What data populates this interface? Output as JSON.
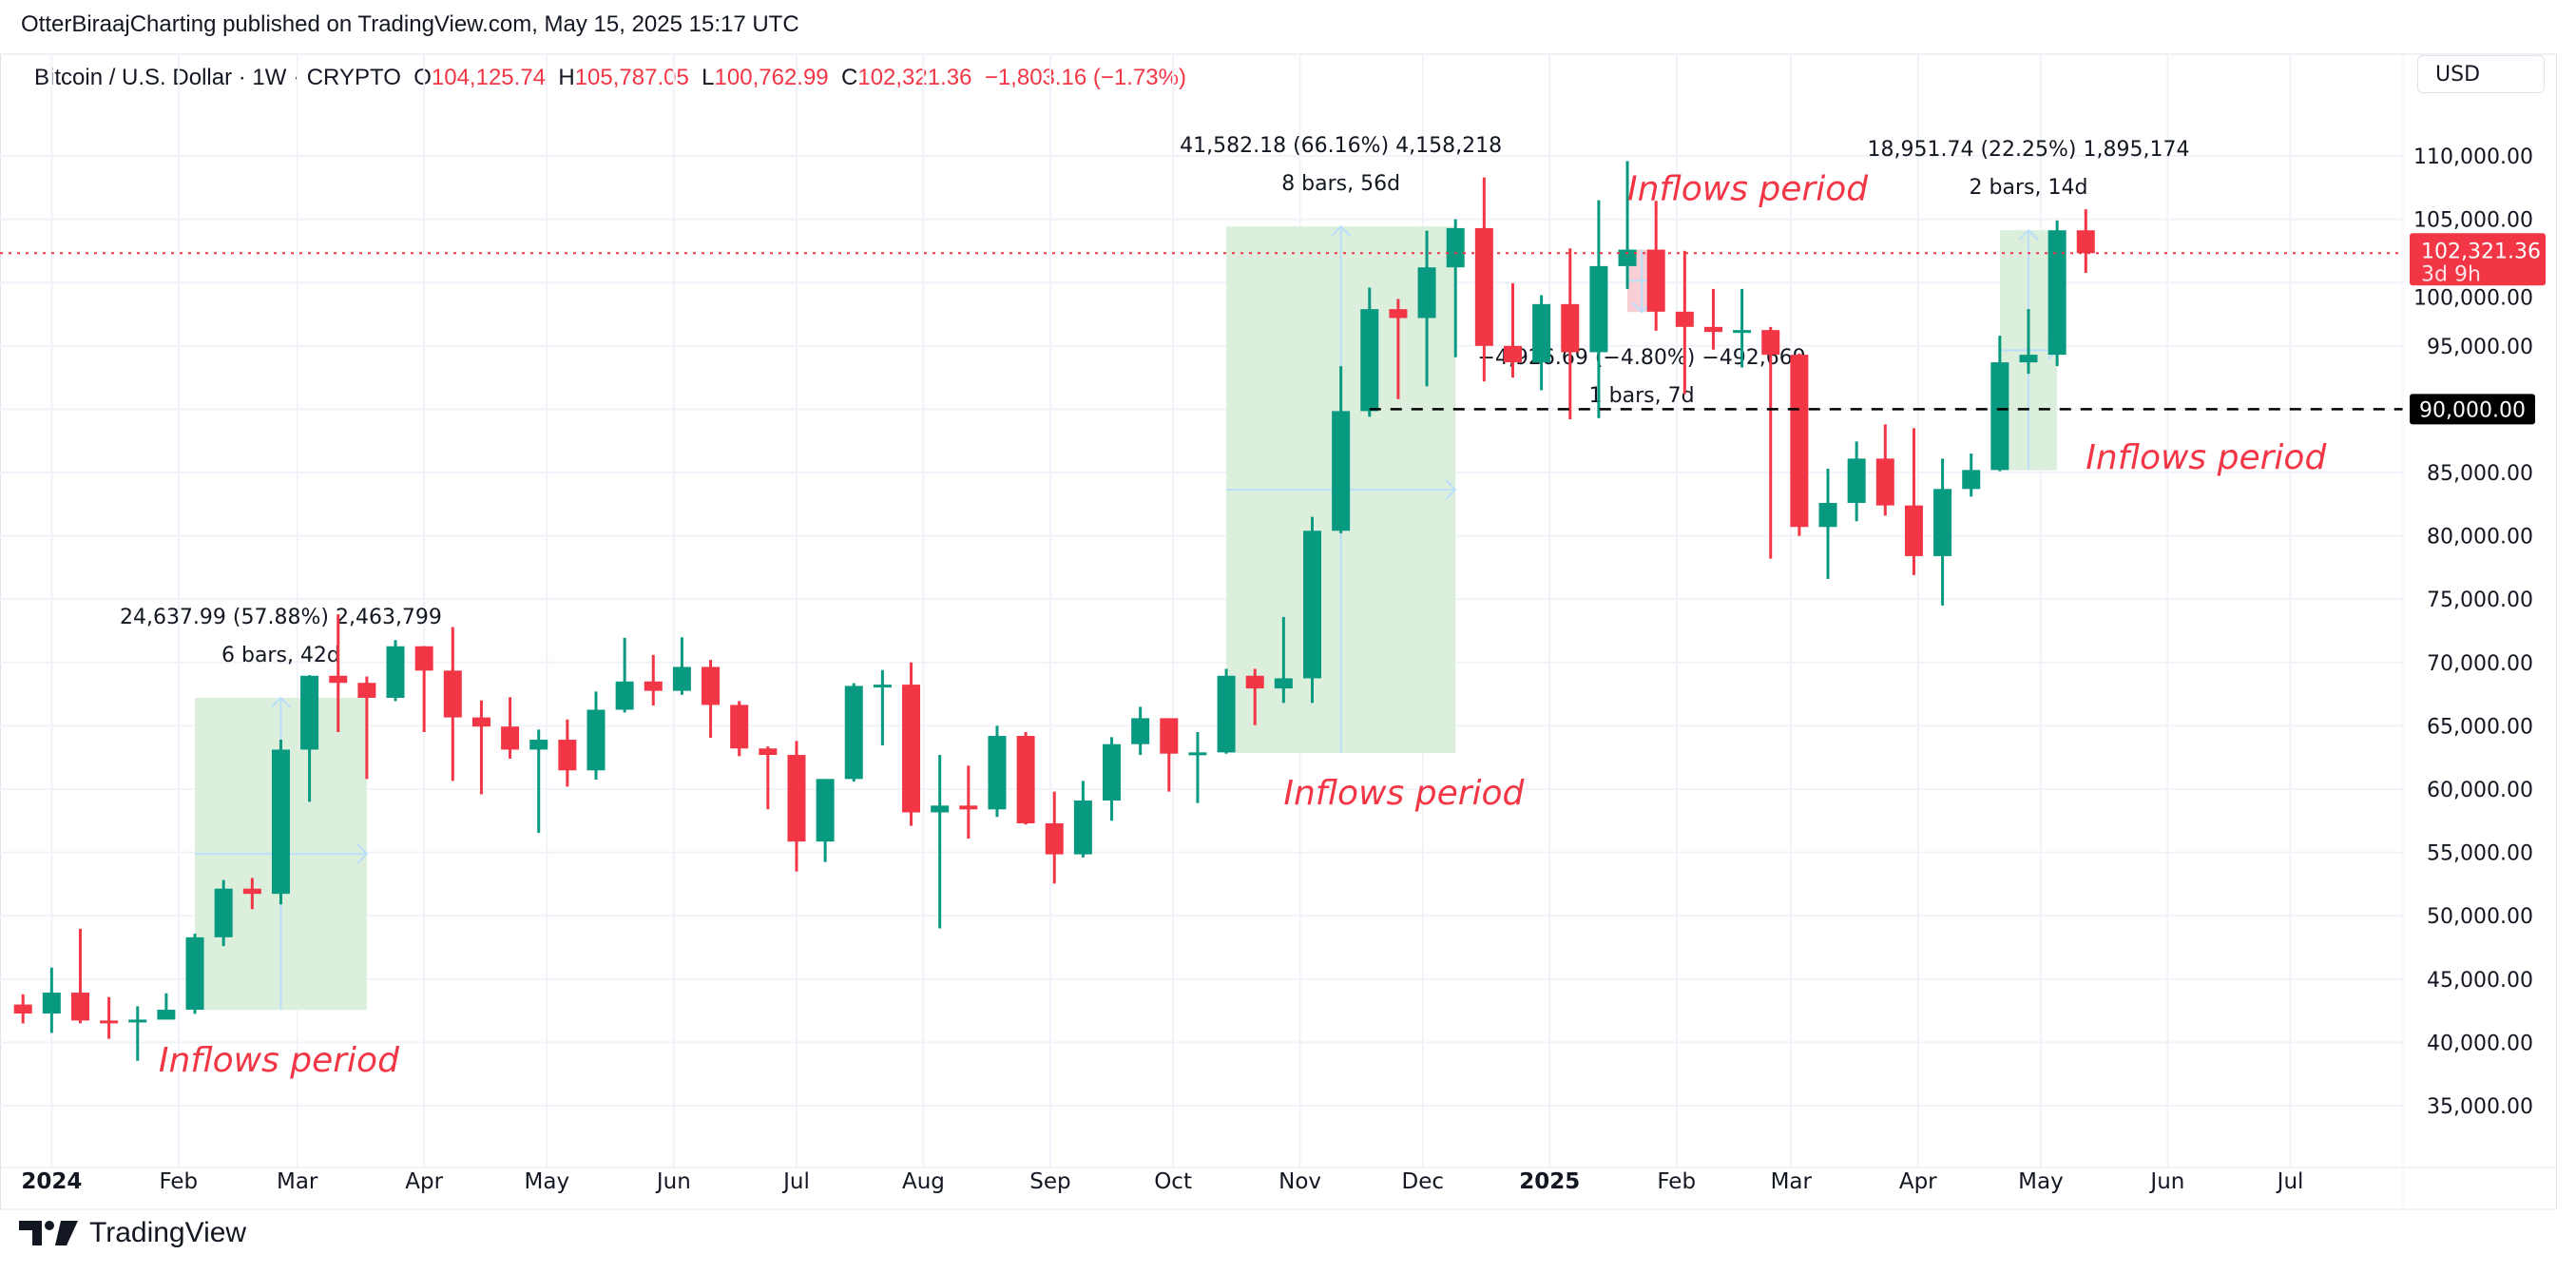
{
  "header": {
    "published": "OtterBiraajCharting published on TradingView.com, May 15, 2025 15:17 UTC"
  },
  "legend": {
    "symbol": "Bitcoin / U.S. Dollar · 1W · CRYPTO",
    "o_label": "O",
    "o": "104,125.74",
    "h_label": "H",
    "h": "105,787.05",
    "l_label": "L",
    "l": "100,762.99",
    "c_label": "C",
    "c": "102,321.36",
    "change": "−1,803.16 (−1.73%)"
  },
  "currency_button": "USD",
  "footer": {
    "brand": "TradingView",
    "logo_icon": "tradingview-logo-icon"
  },
  "colors": {
    "up": "#089981",
    "down": "#f23645",
    "range_fill": "#dcefdc",
    "neg_range_fill": "#f8c9cf",
    "arrow": "#bbdefb",
    "grid": "#f0f3fa",
    "annotation_text": "#f23645"
  },
  "chart_data": {
    "type": "candlestick",
    "interval": "1W",
    "ylim": [
      31000,
      114000
    ],
    "grid": true,
    "y_ticks": [
      "110,000.00",
      "105,000.00",
      "100,000.00",
      "95,000.00",
      "90,000.00",
      "85,000.00",
      "80,000.00",
      "75,000.00",
      "70,000.00",
      "65,000.00",
      "60,000.00",
      "55,000.00",
      "50,000.00",
      "45,000.00",
      "40,000.00",
      "35,000.00"
    ],
    "x_ticks": [
      {
        "label": "2024",
        "date": "2024-01-01",
        "bold": true
      },
      {
        "label": "Feb",
        "date": "2024-02-01"
      },
      {
        "label": "Mar",
        "date": "2024-03-01"
      },
      {
        "label": "Apr",
        "date": "2024-04-01"
      },
      {
        "label": "May",
        "date": "2024-05-01"
      },
      {
        "label": "Jun",
        "date": "2024-06-01"
      },
      {
        "label": "Jul",
        "date": "2024-07-01"
      },
      {
        "label": "Aug",
        "date": "2024-08-01"
      },
      {
        "label": "Sep",
        "date": "2024-09-01"
      },
      {
        "label": "Oct",
        "date": "2024-10-01"
      },
      {
        "label": "Nov",
        "date": "2024-11-01"
      },
      {
        "label": "Dec",
        "date": "2024-12-01"
      },
      {
        "label": "2025",
        "date": "2025-01-01",
        "bold": true
      },
      {
        "label": "Feb",
        "date": "2025-02-01"
      },
      {
        "label": "Mar",
        "date": "2025-03-01"
      },
      {
        "label": "Apr",
        "date": "2025-04-01"
      },
      {
        "label": "May",
        "date": "2025-05-01"
      },
      {
        "label": "Jun",
        "date": "2025-06-01"
      },
      {
        "label": "Jul",
        "date": "2025-07-01"
      }
    ],
    "columns": [
      "date",
      "open",
      "high",
      "low",
      "close"
    ],
    "candles": [
      [
        "2023-12-25",
        42990,
        43800,
        41500,
        42280
      ],
      [
        "2024-01-01",
        42280,
        45900,
        40750,
        43930
      ],
      [
        "2024-01-08",
        43930,
        48970,
        41500,
        41730
      ],
      [
        "2024-01-15",
        41730,
        43580,
        40280,
        41580
      ],
      [
        "2024-01-22",
        41580,
        42850,
        38550,
        41800
      ],
      [
        "2024-01-29",
        41800,
        43880,
        41850,
        42580
      ],
      [
        "2024-02-05",
        42580,
        48590,
        42250,
        48300
      ],
      [
        "2024-02-12",
        48300,
        52820,
        47600,
        52140
      ],
      [
        "2024-02-19",
        52140,
        52980,
        50520,
        51730
      ],
      [
        "2024-02-26",
        51730,
        63900,
        50900,
        63120
      ],
      [
        "2024-03-04",
        63120,
        69000,
        59000,
        68950
      ],
      [
        "2024-03-11",
        68950,
        73800,
        64500,
        68390
      ],
      [
        "2024-03-18",
        68390,
        68900,
        60800,
        67210
      ],
      [
        "2024-03-25",
        67210,
        71770,
        66950,
        71280
      ],
      [
        "2024-04-01",
        71280,
        71300,
        64500,
        69360
      ],
      [
        "2024-04-08",
        69360,
        72800,
        60650,
        65660
      ],
      [
        "2024-04-15",
        65660,
        67000,
        59600,
        64940
      ],
      [
        "2024-04-22",
        64940,
        67250,
        62400,
        63120
      ],
      [
        "2024-04-29",
        63120,
        64700,
        56550,
        63900
      ],
      [
        "2024-05-06",
        63900,
        65500,
        60200,
        61480
      ],
      [
        "2024-05-13",
        61480,
        67700,
        60750,
        66270
      ],
      [
        "2024-05-20",
        66270,
        71950,
        66050,
        68500
      ],
      [
        "2024-05-27",
        68500,
        70600,
        66600,
        67760
      ],
      [
        "2024-06-03",
        67760,
        71990,
        67450,
        69650
      ],
      [
        "2024-06-10",
        69650,
        70200,
        64050,
        66650
      ],
      [
        "2024-06-17",
        66650,
        66950,
        62600,
        63210
      ],
      [
        "2024-06-24",
        63210,
        63370,
        58400,
        62700
      ],
      [
        "2024-07-01",
        62700,
        63800,
        53500,
        55860
      ],
      [
        "2024-07-08",
        55860,
        60800,
        54250,
        60800
      ],
      [
        "2024-07-15",
        60800,
        68360,
        60600,
        68150
      ],
      [
        "2024-07-22",
        68150,
        69400,
        63450,
        68250
      ],
      [
        "2024-07-29",
        68250,
        70000,
        57100,
        58160
      ],
      [
        "2024-08-05",
        58160,
        62700,
        49000,
        58700
      ],
      [
        "2024-08-12",
        58700,
        61850,
        56100,
        58400
      ],
      [
        "2024-08-19",
        58400,
        65000,
        57800,
        64200
      ],
      [
        "2024-08-26",
        64200,
        64500,
        57200,
        57300
      ],
      [
        "2024-09-02",
        57300,
        59800,
        52550,
        54850
      ],
      [
        "2024-09-09",
        54850,
        60650,
        54600,
        59100
      ],
      [
        "2024-09-16",
        59100,
        64100,
        57500,
        63550
      ],
      [
        "2024-09-23",
        63550,
        66500,
        62700,
        65600
      ],
      [
        "2024-09-30",
        65600,
        65600,
        59800,
        62800
      ],
      [
        "2024-10-07",
        62800,
        64500,
        58900,
        62900
      ],
      [
        "2024-10-14",
        62900,
        69500,
        62800,
        68950
      ],
      [
        "2024-10-21",
        68950,
        69500,
        65050,
        67950
      ],
      [
        "2024-10-28",
        67950,
        73600,
        66800,
        68750
      ],
      [
        "2024-11-04",
        68750,
        81500,
        66800,
        80400
      ],
      [
        "2024-11-11",
        80400,
        93400,
        80200,
        89850
      ],
      [
        "2024-11-18",
        89850,
        99600,
        89400,
        97900
      ],
      [
        "2024-11-25",
        97900,
        98700,
        90800,
        97200
      ],
      [
        "2024-12-02",
        97200,
        104100,
        91800,
        101200
      ],
      [
        "2024-12-09",
        101200,
        105000,
        94100,
        104300
      ],
      [
        "2024-12-16",
        104300,
        108300,
        92200,
        95000
      ],
      [
        "2024-12-23",
        95000,
        99950,
        92500,
        93700
      ],
      [
        "2024-12-30",
        93700,
        99000,
        91500,
        98300
      ],
      [
        "2025-01-06",
        98300,
        102700,
        89200,
        94500
      ],
      [
        "2025-01-13",
        94500,
        106500,
        89300,
        101300
      ],
      [
        "2025-01-20",
        101300,
        109600,
        99500,
        102600
      ],
      [
        "2025-01-27",
        102600,
        106450,
        96200,
        97700
      ],
      [
        "2025-02-03",
        97700,
        102500,
        91200,
        96500
      ],
      [
        "2025-02-10",
        96500,
        99500,
        94700,
        96100
      ],
      [
        "2025-02-17",
        96100,
        99500,
        93300,
        96250
      ],
      [
        "2025-02-24",
        96250,
        96500,
        78200,
        94300
      ],
      [
        "2025-03-03",
        94300,
        94400,
        80000,
        80700
      ],
      [
        "2025-03-10",
        80700,
        85300,
        76600,
        82600
      ],
      [
        "2025-03-17",
        82600,
        87450,
        81150,
        86100
      ],
      [
        "2025-03-24",
        86100,
        88800,
        81600,
        82400
      ],
      [
        "2025-03-31",
        82400,
        88500,
        76900,
        78400
      ],
      [
        "2025-04-07",
        78400,
        86100,
        74500,
        83700
      ],
      [
        "2025-04-14",
        83700,
        86500,
        83100,
        85200
      ],
      [
        "2025-04-21",
        85200,
        95800,
        85100,
        93700
      ],
      [
        "2025-04-28",
        93700,
        97900,
        92800,
        94300
      ],
      [
        "2025-05-05",
        94300,
        104900,
        93400,
        104125.74
      ],
      [
        "2025-05-12",
        104125.74,
        105787.05,
        100762.99,
        102321.36
      ]
    ],
    "date_price_ranges": [
      {
        "from": "2024-02-05",
        "to": "2024-03-18",
        "p1": 42568.18,
        "p2": 67206.17,
        "line1": "24,637.99 (57.88%) 2,463,799",
        "line2": "6 bars, 42d"
      },
      {
        "from": "2024-10-14",
        "to": "2024-12-09",
        "p1": 62850,
        "p2": 104432.18,
        "line1": "41,582.18 (66.16%) 4,158,218",
        "line2": "8 bars, 56d"
      },
      {
        "from": "2025-01-20",
        "to": "2025-01-27",
        "p1": 102600,
        "p2": 97673.31,
        "line1": "−4,926.69 (−4.80%) −492,669",
        "line2": "1 bars, 7d"
      },
      {
        "from": "2025-04-21",
        "to": "2025-05-05",
        "p1": 85180,
        "p2": 104131.74,
        "line1": "18,951.74 (22.25%) 1,895,174",
        "line2": "2 bars, 14d"
      }
    ],
    "text_annotations": [
      "Inflows period",
      "Inflows period",
      "Inflows period",
      "Inflows period"
    ],
    "horizontal_line": {
      "price": 90000,
      "from": "2024-11-18",
      "label": "90,000.00",
      "style": "dashed"
    },
    "last_price": {
      "price": 102321.36,
      "label": "102,321.36",
      "countdown": "3d 9h"
    }
  }
}
